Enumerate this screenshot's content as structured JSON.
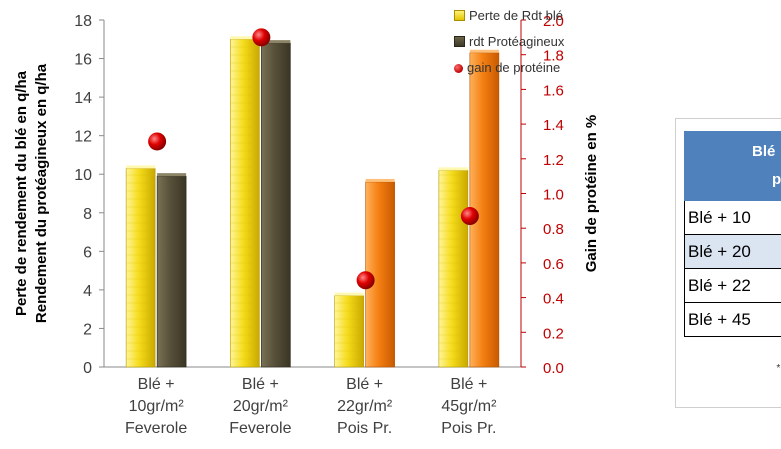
{
  "chart_data": {
    "type": "bar",
    "categories": [
      [
        "Blé +",
        "10gr/m²",
        "Feverole"
      ],
      [
        "Blé +",
        "20gr/m²",
        "Feverole"
      ],
      [
        "Blé +",
        "22gr/m²",
        "Pois Pr."
      ],
      [
        "Blé +",
        "45gr/m²",
        "Pois Pr."
      ]
    ],
    "series": [
      {
        "name": "Perte de Rdt blé",
        "values": [
          10.3,
          17.0,
          3.7,
          10.2
        ],
        "axis": "left",
        "color": "#f2d600"
      },
      {
        "name": "rdt Protéagineux",
        "values": [
          9.9,
          16.8,
          9.6,
          16.3
        ],
        "axis": "left",
        "colors": [
          "#5a5238",
          "#5a5238",
          "#f07a10",
          "#f07a10"
        ]
      },
      {
        "name": "gain de protéine",
        "values": [
          1.3,
          1.9,
          0.5,
          0.87
        ],
        "axis": "right",
        "type": "scatter",
        "color": "#e00000"
      }
    ],
    "ylabel": [
      "Perte de rendement du blé en q/ha",
      "Rendement du protéagineux en q/ha"
    ],
    "y2label": "Gain de protéine en %",
    "ylim": [
      0,
      18
    ],
    "yticks": [
      "0",
      "2",
      "4",
      "6",
      "8",
      "10",
      "12",
      "14",
      "16",
      "18"
    ],
    "y2lim": [
      0,
      2.0
    ],
    "y2ticks": [
      "0.0",
      "0.2",
      "0.4",
      "0.6",
      "0.8",
      "1.0",
      "1.2",
      "1.4",
      "1.6",
      "1.8",
      "2.0"
    ],
    "y2_color": "#c00000",
    "grid": false,
    "legend": "top-right"
  },
  "side_table": {
    "header_lines": [
      "Blé",
      "pr"
    ],
    "rows": [
      "Blé + 10",
      "Blé + 20",
      "Blé + 22",
      "Blé + 45"
    ],
    "note": "* y"
  }
}
